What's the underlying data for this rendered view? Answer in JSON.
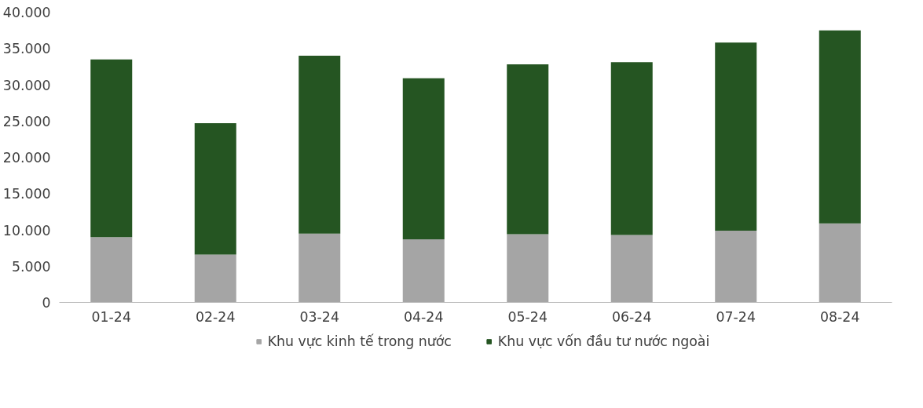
{
  "chart_data": {
    "type": "bar",
    "stacked": true,
    "categories": [
      "01-24",
      "02-24",
      "03-24",
      "04-24",
      "05-24",
      "06-24",
      "07-24",
      "08-24"
    ],
    "series": [
      {
        "name": "Khu vực kinh tế trong nước",
        "color": "#a5a5a5",
        "values": [
          9000,
          6600,
          9500,
          8700,
          9400,
          9300,
          9900,
          10900
        ]
      },
      {
        "name": "Khu vực vốn đầu tư nước ngoài",
        "color": "#255522",
        "values": [
          24500,
          18100,
          24500,
          22200,
          23400,
          23800,
          25900,
          26600
        ]
      }
    ],
    "ylim": [
      0,
      40000
    ],
    "yticks": [
      0,
      {
        "value": 5000,
        "label": "5.000"
      },
      {
        "value": 10000,
        "label": "10.000"
      },
      {
        "value": 15000,
        "label": "15.000"
      },
      {
        "value": 20000,
        "label": "20.000"
      },
      {
        "value": 25000,
        "label": "25.000"
      },
      {
        "value": 30000,
        "label": "30.000"
      },
      {
        "value": 35000,
        "label": "35.000"
      },
      {
        "value": 40000,
        "label": "40.000"
      }
    ],
    "grid": false,
    "legend": "bottom"
  }
}
